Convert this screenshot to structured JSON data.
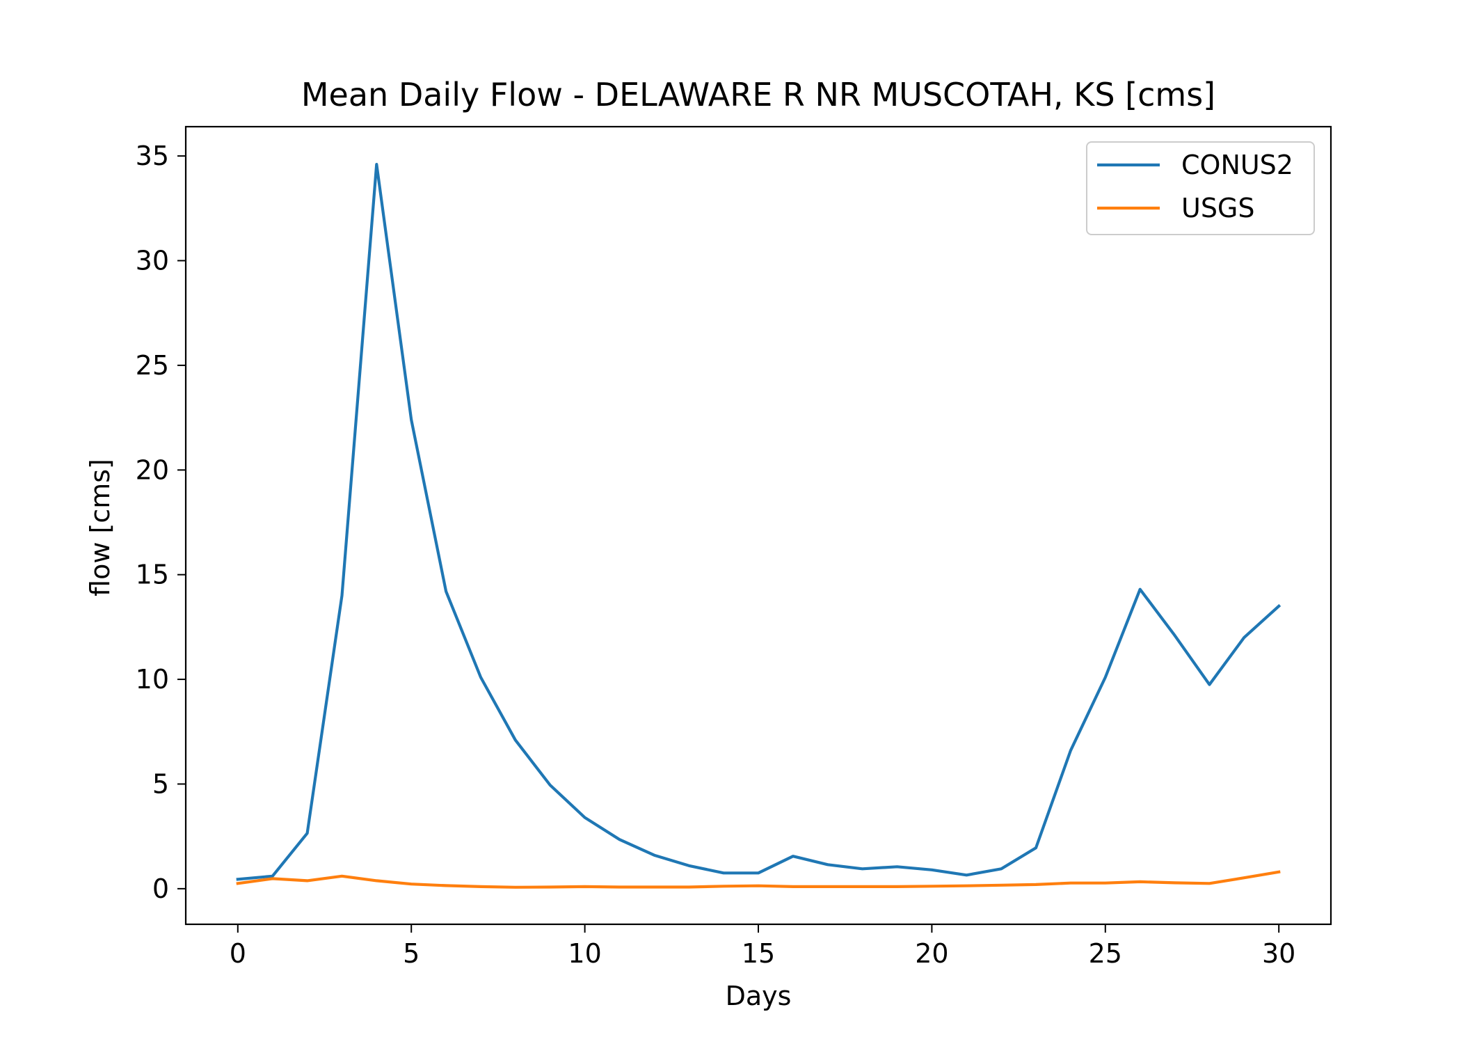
{
  "chart_data": {
    "type": "line",
    "title": "Mean Daily Flow - DELAWARE R NR MUSCOTAH, KS [cms]",
    "xlabel": "Days",
    "ylabel": "flow [cms]",
    "xlim": [
      -1.5,
      31.5
    ],
    "ylim": [
      -1.7,
      36.4
    ],
    "xticks": [
      0,
      5,
      10,
      15,
      20,
      25,
      30
    ],
    "yticks": [
      0,
      5,
      10,
      15,
      20,
      25,
      30,
      35
    ],
    "grid": false,
    "legend_position": "top-right",
    "x": [
      0,
      1,
      2,
      3,
      4,
      5,
      6,
      7,
      8,
      9,
      10,
      11,
      12,
      13,
      14,
      15,
      16,
      17,
      18,
      19,
      20,
      21,
      22,
      23,
      24,
      25,
      26,
      27,
      28,
      29,
      30
    ],
    "series": [
      {
        "name": "CONUS2",
        "color": "#1f77b4",
        "values": [
          0.45,
          0.6,
          2.65,
          14.0,
          34.6,
          22.4,
          14.2,
          10.1,
          7.1,
          4.95,
          3.4,
          2.35,
          1.6,
          1.1,
          0.75,
          0.75,
          1.55,
          1.15,
          0.95,
          1.05,
          0.9,
          0.65,
          0.95,
          1.95,
          6.6,
          10.1,
          14.3,
          12.1,
          9.75,
          12.0,
          13.5
        ]
      },
      {
        "name": "USGS",
        "color": "#ff7f0e",
        "values": [
          0.25,
          0.48,
          0.38,
          0.6,
          0.38,
          0.22,
          0.15,
          0.1,
          0.07,
          0.08,
          0.1,
          0.08,
          0.08,
          0.08,
          0.12,
          0.14,
          0.1,
          0.1,
          0.1,
          0.1,
          0.12,
          0.14,
          0.17,
          0.2,
          0.27,
          0.27,
          0.33,
          0.28,
          0.25,
          0.52,
          0.8
        ]
      }
    ]
  }
}
